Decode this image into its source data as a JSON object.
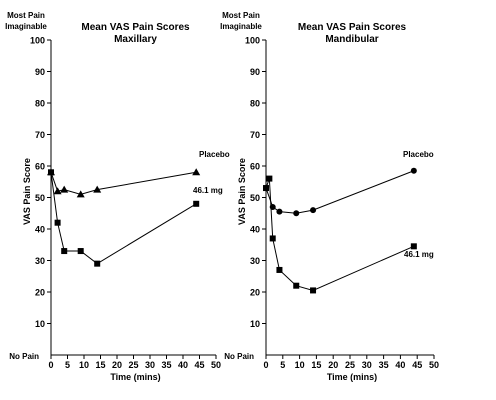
{
  "chart_data": [
    {
      "type": "line",
      "title": "Mean VAS Pain Scores",
      "subtitle": "Maxillary",
      "xlabel": "Time (mins)",
      "ylabel": "VAS Pain Score",
      "y_top_label": [
        "Most Pain",
        "Imaginable"
      ],
      "y_bottom_label": "No Pain",
      "xlim": [
        0,
        50
      ],
      "ylim": [
        0,
        100
      ],
      "xticks": [
        0,
        5,
        10,
        15,
        20,
        25,
        30,
        35,
        40,
        45,
        50
      ],
      "yticks": [
        10,
        20,
        30,
        40,
        50,
        60,
        70,
        80,
        90,
        100
      ],
      "grid": false,
      "series": [
        {
          "name": "Placebo",
          "marker": "triangle",
          "x": [
            0,
            2,
            4,
            9,
            14,
            44
          ],
          "y": [
            58,
            52,
            52.5,
            51,
            52.5,
            58
          ]
        },
        {
          "name": "46.1 mg",
          "marker": "square",
          "x": [
            0,
            2,
            4,
            9,
            14,
            44
          ],
          "y": [
            58,
            42,
            33,
            33,
            29,
            48
          ]
        }
      ]
    },
    {
      "type": "line",
      "title": "Mean VAS Pain Scores",
      "subtitle": "Mandibular",
      "xlabel": "Time (mins)",
      "ylabel": "VAS Pain Score",
      "y_top_label": [
        "Most Pain",
        "Imaginable"
      ],
      "y_bottom_label": "No Pain",
      "xlim": [
        0,
        50
      ],
      "ylim": [
        0,
        100
      ],
      "xticks": [
        0,
        5,
        10,
        15,
        20,
        25,
        30,
        35,
        40,
        45,
        50
      ],
      "yticks": [
        10,
        20,
        30,
        40,
        50,
        60,
        70,
        80,
        90,
        100
      ],
      "grid": false,
      "series": [
        {
          "name": "Placebo",
          "marker": "circle",
          "x": [
            0,
            2,
            4,
            9,
            14,
            44
          ],
          "y": [
            53,
            47,
            45.5,
            45,
            46,
            58.5
          ]
        },
        {
          "name": "46.1 mg",
          "marker": "square",
          "x": [
            0,
            1,
            2,
            4,
            9,
            14,
            44
          ],
          "y": [
            53,
            56,
            37,
            27,
            22,
            20.5,
            34.5
          ]
        }
      ]
    }
  ]
}
